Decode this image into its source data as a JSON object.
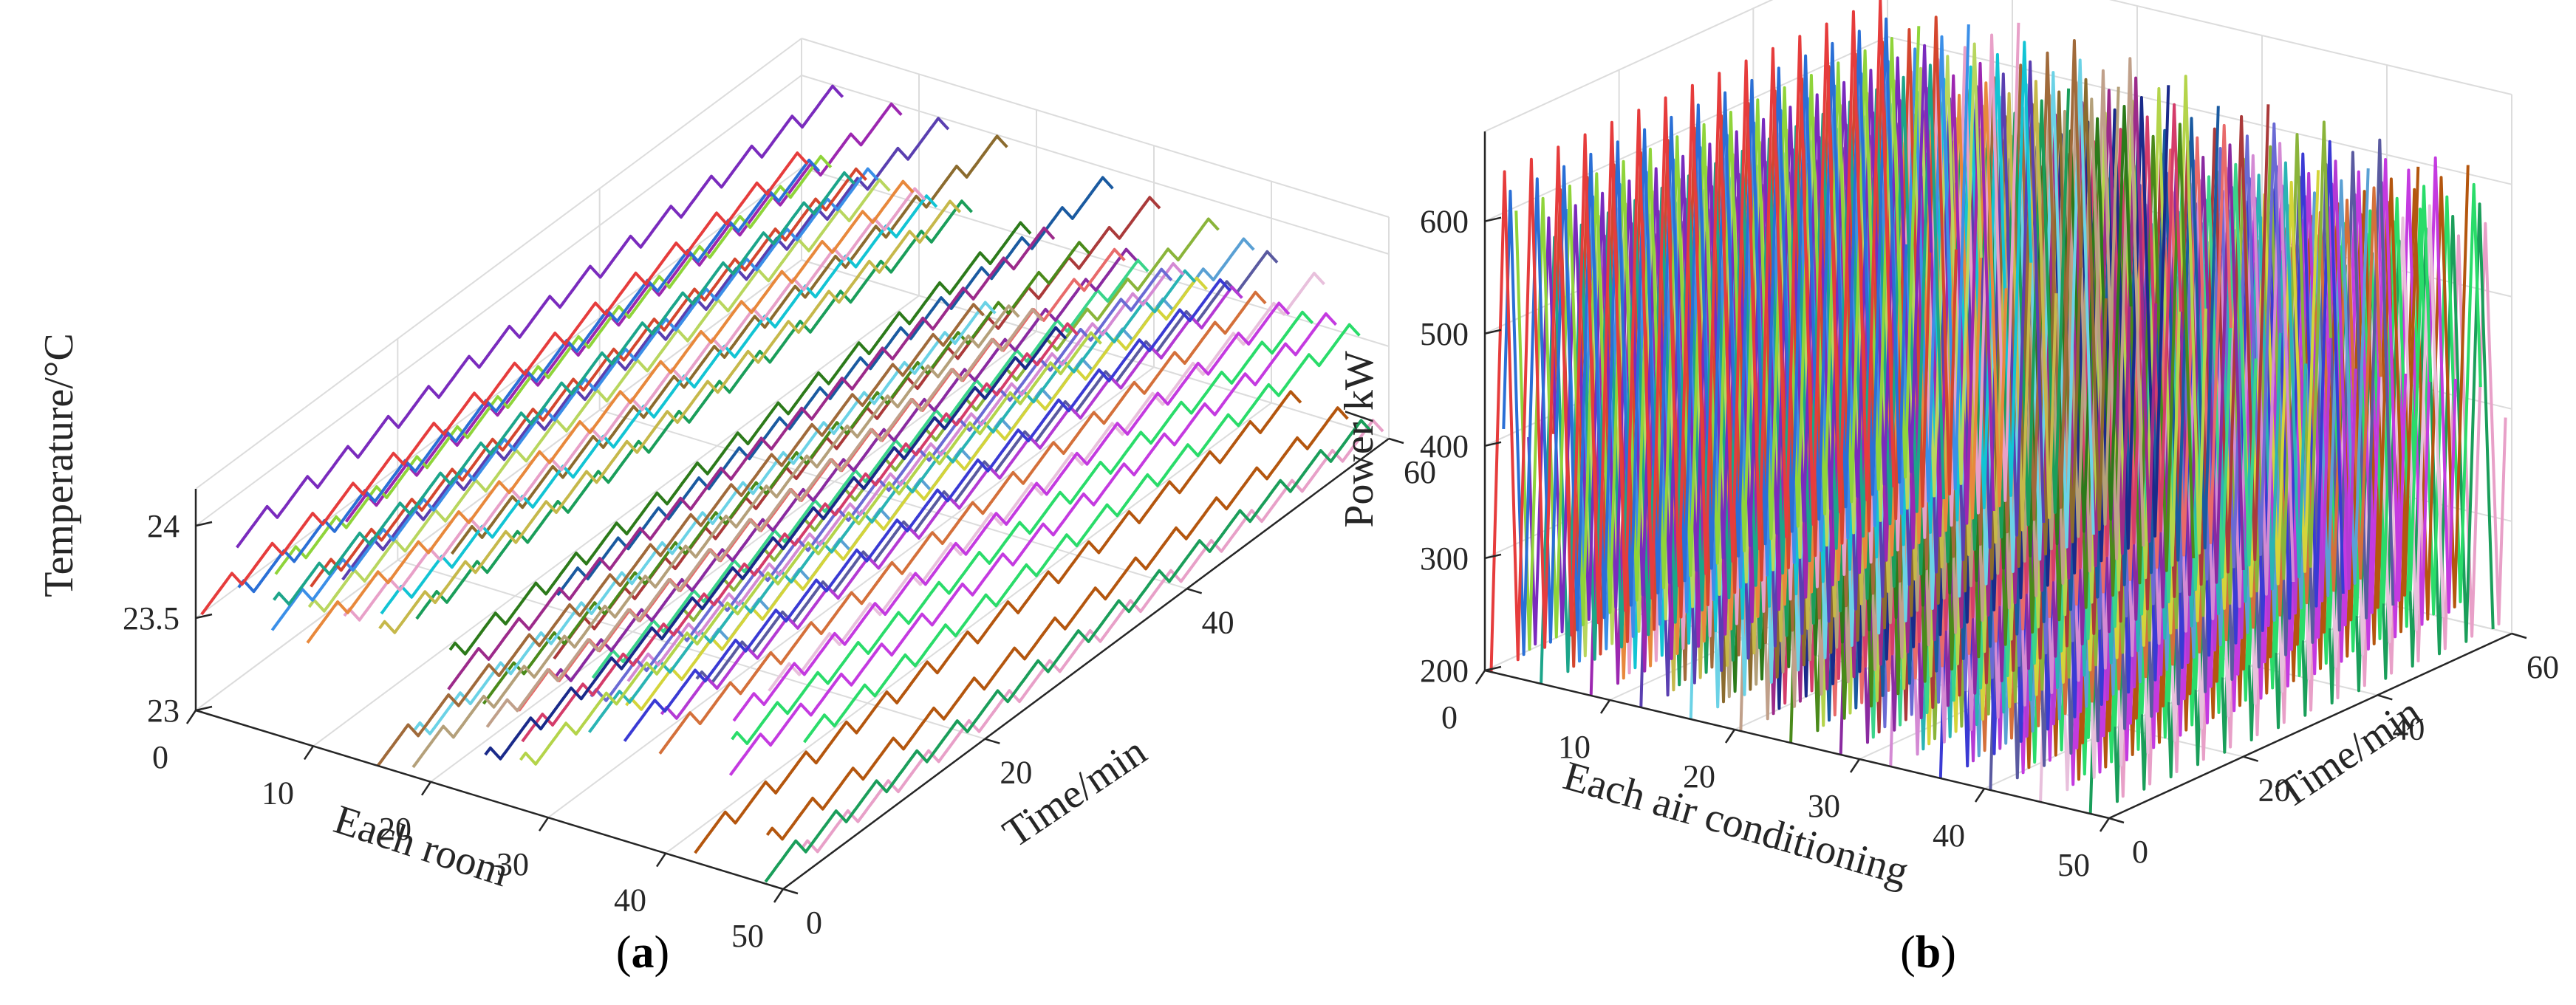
{
  "captions": {
    "a": "a",
    "b": "b"
  },
  "chart_data": [
    {
      "type": "line",
      "projection": "3d",
      "xlabel": "Each room",
      "ylabel": "Time/min",
      "zlabel": "Temperature/°C",
      "xlim": [
        0,
        50
      ],
      "ylim": [
        0,
        60
      ],
      "zlim": [
        23,
        24.2
      ],
      "xticks": [
        "0",
        "10",
        "20",
        "30",
        "40",
        "50"
      ],
      "yticks": [
        "0",
        "20",
        "40",
        "60"
      ],
      "zticks": [
        "23",
        "23.5",
        "24"
      ],
      "grid": true,
      "series_count": 50,
      "waveform": {
        "period_min": 4,
        "amplitude_c": 0.1
      },
      "room_levels": [
        23.58,
        23.56,
        23.6,
        23.57,
        23.55,
        23.59,
        23.61,
        23.57,
        23.55,
        23.6,
        23.58,
        23.56,
        23.6,
        23.57,
        23.59,
        23.05,
        23.08,
        23.55,
        23.1,
        23.57,
        23.12,
        23.58,
        23.06,
        23.1,
        23.56,
        23.09,
        23.55,
        23.58,
        23.6,
        23.56,
        23.57,
        23.55,
        23.6,
        23.58,
        23.56,
        23.55,
        23.59,
        23.57,
        23.6,
        23.58,
        23.08,
        23.56,
        23.1,
        23.55,
        23.07,
        23.58,
        23.09,
        23.56,
        23.06,
        23.08
      ],
      "high_group_levels": [
        24.0,
        24.0,
        24.0,
        24.0,
        23.95,
        23.92,
        23.9,
        23.85,
        23.82,
        23.78
      ],
      "colors": [
        "#e63c3c",
        "#2a6fd6",
        "#8fd43a",
        "#7a2bbd",
        "#1ca58a",
        "#d4462e",
        "#3b8fe8",
        "#b8d65e",
        "#9c27b0",
        "#e8883b",
        "#e8a0c8",
        "#12c4d4",
        "#5a3fb0",
        "#c6b84a",
        "#1a9e5a",
        "#a06a3a",
        "#6bd2e6",
        "#8b6b2e",
        "#b4a07a",
        "#2c7a1a",
        "#c0a08a",
        "#9c2a8a",
        "#1a2a8a",
        "#d43c6a",
        "#4a8a1a",
        "#b4d44a",
        "#1a5aa0",
        "#e86a6a",
        "#8a2aa0",
        "#3ad48a",
        "#aa3a3a",
        "#6a6ad4",
        "#d48ad4",
        "#2ab4b4",
        "#d4d43a",
        "#8ab43a",
        "#3a3ad4",
        "#b43ad4",
        "#5aa0d4",
        "#d4703a",
        "#5a5aa0",
        "#c43ae0",
        "#b4560e",
        "#2adc6a",
        "#e8c0dc",
        "#c43ae0",
        "#b4560e",
        "#2adc6a",
        "#1a9e5a",
        "#e8a0c8"
      ]
    },
    {
      "type": "line",
      "projection": "3d",
      "xlabel": "Each air conditioning",
      "ylabel": "Time/min",
      "zlabel": "Power/kW",
      "xlim": [
        0,
        50
      ],
      "ylim": [
        0,
        60
      ],
      "zlim": [
        200,
        680
      ],
      "xticks": [
        "0",
        "10",
        "20",
        "30",
        "40",
        "50"
      ],
      "yticks": [
        "0",
        "20",
        "40",
        "60"
      ],
      "zticks": [
        "200",
        "300",
        "400",
        "500",
        "600"
      ],
      "grid": true,
      "series_count": 50,
      "waveform": {
        "period_min": 4,
        "min_kw": 200,
        "max_kw": 640
      },
      "colors": [
        "#e63c3c",
        "#2a6fd6",
        "#8fd43a",
        "#7a2bbd",
        "#1ca58a",
        "#d4462e",
        "#3b8fe8",
        "#b8d65e",
        "#9c27b0",
        "#e8883b",
        "#e8a0c8",
        "#12c4d4",
        "#5a3fb0",
        "#c6b84a",
        "#1a9e5a",
        "#a06a3a",
        "#6bd2e6",
        "#8b6b2e",
        "#b4a07a",
        "#2c7a1a",
        "#c0a08a",
        "#9c2a8a",
        "#1a2a8a",
        "#d43c6a",
        "#4a8a1a",
        "#b4d44a",
        "#1a5aa0",
        "#e86a6a",
        "#8a2aa0",
        "#3ad48a",
        "#aa3a3a",
        "#6a6ad4",
        "#d48ad4",
        "#2ab4b4",
        "#d4d43a",
        "#8ab43a",
        "#3a3ad4",
        "#b43ad4",
        "#5aa0d4",
        "#d4703a",
        "#5a5aa0",
        "#c43ae0",
        "#b4560e",
        "#2adc6a",
        "#e8c0dc",
        "#c43ae0",
        "#b4560e",
        "#2adc6a",
        "#1a9e5a",
        "#e8a0c8"
      ]
    }
  ]
}
